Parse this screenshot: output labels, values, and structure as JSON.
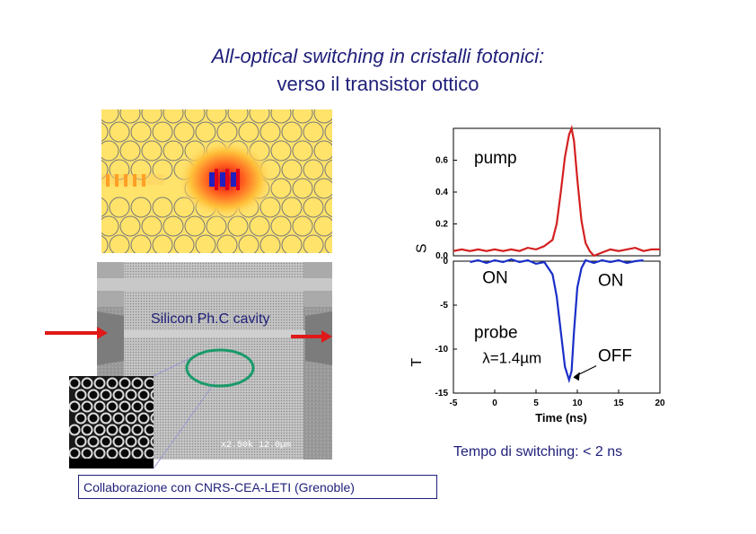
{
  "title": {
    "line1": "All-optical switching in cristalli fotonici:",
    "line2": "verso il transistor ottico"
  },
  "images": {
    "field_map": "photonic-crystal-field-map",
    "sem": "sem-photonic-crystal",
    "inset": "sem-inset-holes",
    "sem_scale": "x2.50k 12.0µm"
  },
  "labels": {
    "cavity": "Silicon Ph.C cavity",
    "switching_time": "Tempo di switching: < 2 ns",
    "collaboration": "Collaborazione con CNRS-CEA-LETI (Grenoble)"
  },
  "colors": {
    "title": "#1f1f7a",
    "pump": "#d42020",
    "probe": "#1a2ec8",
    "arrow": "#e01818",
    "ellipse": "#1a9a6a"
  },
  "chart_data": [
    {
      "type": "line",
      "name": "pump",
      "x": [
        -5,
        -4,
        -3,
        -2,
        -1,
        0,
        1,
        2,
        3,
        4,
        5,
        6,
        7,
        7.5,
        8,
        8.5,
        9,
        9.3,
        9.6,
        10,
        10.5,
        11,
        11.5,
        12,
        13,
        14,
        15,
        16,
        17,
        18,
        19,
        20
      ],
      "values": [
        0.03,
        0.04,
        0.03,
        0.04,
        0.03,
        0.04,
        0.03,
        0.04,
        0.03,
        0.05,
        0.04,
        0.06,
        0.1,
        0.2,
        0.4,
        0.62,
        0.76,
        0.8,
        0.72,
        0.48,
        0.22,
        0.08,
        0.03,
        0.0,
        0.02,
        0.04,
        0.03,
        0.04,
        0.05,
        0.03,
        0.04,
        0.04
      ],
      "xlim": [
        -5,
        20
      ],
      "ylim": [
        0,
        0.8
      ],
      "yticks": [
        "0.0",
        "0.2",
        "0.4",
        "0.6"
      ],
      "annotations": [
        "pump"
      ],
      "ylabel": "S"
    },
    {
      "type": "line",
      "name": "probe",
      "x": [
        -3,
        -2,
        -1,
        0,
        1,
        2,
        3,
        4,
        5,
        6,
        7,
        7.5,
        8,
        8.5,
        9,
        9.3,
        9.6,
        10,
        10.5,
        11,
        12,
        13,
        14,
        15,
        16,
        17,
        18
      ],
      "values": [
        -0.1,
        0.1,
        -0.2,
        0.1,
        -0.1,
        0.2,
        -0.1,
        0.1,
        -0.3,
        -0.1,
        -1.5,
        -4,
        -8,
        -12,
        -13.5,
        -12.5,
        -8,
        -3,
        -0.8,
        0.1,
        -0.2,
        0.1,
        -0.1,
        0.1,
        -0.2,
        0.0,
        0.1
      ],
      "xlim": [
        -5,
        20
      ],
      "ylim": [
        -15,
        0
      ],
      "yticks": [
        "0",
        "-5",
        "-10",
        "-15"
      ],
      "xticks": [
        "-5",
        "0",
        "5",
        "10",
        "15",
        "20"
      ],
      "xlabel": "Time (ns)",
      "annotations": [
        "ON",
        "ON",
        "probe",
        "λ=1.4µm",
        "OFF"
      ],
      "ylabel": "T"
    }
  ]
}
